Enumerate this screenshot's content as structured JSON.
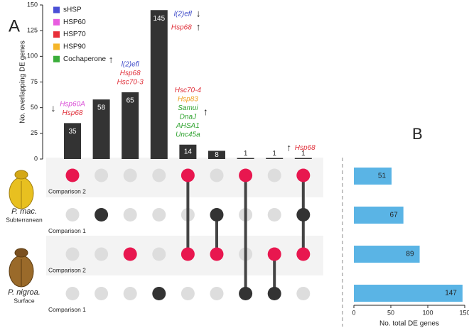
{
  "chart_data": [
    {
      "type": "upset",
      "panel": "A",
      "ylabel": "No. overlapping DE genes",
      "ylim": [
        0,
        150
      ],
      "yticks": [
        0,
        25,
        50,
        75,
        100,
        125,
        150
      ],
      "values": [
        35,
        58,
        65,
        145,
        14,
        8,
        1,
        1,
        1
      ],
      "color": "#333333",
      "legend": [
        {
          "name": "sHSP",
          "color": "#4a4fd6"
        },
        {
          "name": "HSP60",
          "color": "#e85ce0"
        },
        {
          "name": "HSP70",
          "color": "#e8303a"
        },
        {
          "name": "HSP90",
          "color": "#f5b62a"
        },
        {
          "name": "Cochaperone",
          "color": "#3aad3a"
        }
      ],
      "annotations": [
        {
          "arrow": "↓",
          "genes": [
            {
              "text": "Hsp60A",
              "color": "#d94fd6"
            },
            {
              "text": "Hsp68",
              "color": "#e0303a"
            }
          ]
        },
        null,
        {
          "arrow": "↑",
          "genes": [
            {
              "text": "l(2)efl",
              "color": "#3a47c8"
            },
            {
              "text": "Hsp68",
              "color": "#e0303a"
            },
            {
              "text": "Hsc70-3",
              "color": "#e0303a"
            }
          ]
        },
        {
          "genes": [
            {
              "text": "l(2)efl",
              "color": "#3a47c8",
              "arrow": "↓"
            },
            {
              "text": "Hsp68",
              "color": "#e0303a",
              "arrow": "↑"
            }
          ]
        },
        {
          "arrow": "↑",
          "genes": [
            {
              "text": "Hsc70-4",
              "color": "#e0303a"
            },
            {
              "text": "Hsp83",
              "color": "#f0a020"
            },
            {
              "text": "Samui",
              "color": "#2fa32f"
            },
            {
              "text": "DnaJ",
              "color": "#2fa32f"
            },
            {
              "text": "AHSA1",
              "color": "#2fa32f"
            },
            {
              "text": "Unc45a",
              "color": "#2fa32f"
            }
          ]
        },
        null,
        null,
        null,
        {
          "arrow": "↑",
          "genes": [
            {
              "text": "Hsp68",
              "color": "#e0303a"
            }
          ]
        }
      ],
      "sets": [
        {
          "label": "Comparison 2",
          "color": "#e8174f"
        },
        {
          "label": "Comparison 1",
          "color": "#333333"
        },
        {
          "label": "Comparison 2",
          "color": "#e8174f"
        },
        {
          "label": "Comparison 1",
          "color": "#333333"
        }
      ],
      "groups": [
        {
          "name": "P. mac.",
          "habitat": "Subterranean"
        },
        {
          "name": "P. nigroa.",
          "habitat": "Surface"
        }
      ],
      "membership": [
        [
          1,
          0,
          0,
          0
        ],
        [
          0,
          1,
          0,
          0
        ],
        [
          0,
          0,
          1,
          0
        ],
        [
          0,
          0,
          0,
          1
        ],
        [
          1,
          0,
          1,
          0
        ],
        [
          0,
          1,
          1,
          0
        ],
        [
          1,
          0,
          0,
          1
        ],
        [
          0,
          0,
          1,
          1
        ],
        [
          1,
          1,
          1,
          0
        ]
      ]
    },
    {
      "type": "barh",
      "panel": "B",
      "xlabel": "No. total DE genes",
      "xlim": [
        0,
        150
      ],
      "xticks": [
        0,
        50,
        100,
        150
      ],
      "values": [
        51,
        67,
        89,
        147
      ],
      "color": "#5ab4e5"
    }
  ]
}
